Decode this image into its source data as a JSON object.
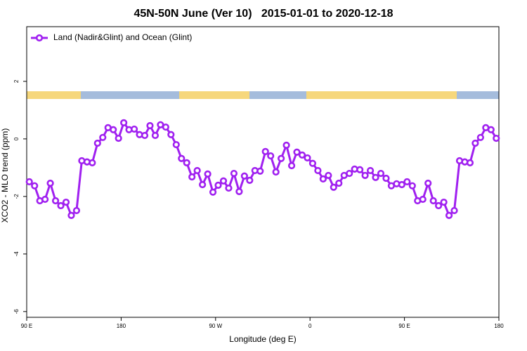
{
  "chart_data": {
    "type": "line",
    "title": "45N-50N June (Ver 10)   2015-01-01 to 2020-12-18",
    "x_label": "Longitude (deg E)",
    "y_label": "XCO2 - MLO trend (ppm)",
    "x": [
      92.5,
      97.5,
      102.5,
      107.5,
      112.5,
      117.5,
      122.5,
      127.5,
      132.5,
      137.5,
      142.5,
      147.5,
      152.5,
      157.5,
      162.5,
      167.5,
      172.5,
      177.5,
      182.5,
      187.5,
      192.5,
      197.5,
      202.5,
      207.5,
      212.5,
      217.5,
      222.5,
      227.5,
      232.5,
      237.5,
      242.5,
      247.5,
      252.5,
      257.5,
      262.5,
      267.5,
      272.5,
      277.5,
      282.5,
      287.5,
      292.5,
      297.5,
      302.5,
      307.5,
      312.5,
      317.5,
      322.5,
      327.5,
      332.5,
      337.5,
      342.5,
      347.5,
      352.5,
      357.5,
      362.5,
      367.5,
      372.5,
      377.5,
      382.5,
      387.5,
      392.5,
      397.5,
      402.5,
      407.5,
      412.5,
      417.5,
      422.5,
      427.5,
      432.5,
      437.5,
      442.5,
      447.5,
      452.5,
      457.5,
      462.5,
      467.5,
      472.5,
      477.5,
      482.5,
      487.5,
      492.5,
      497.5,
      502.5,
      507.5,
      512.5,
      517.5,
      522.5,
      527.5,
      532.5,
      537.5
    ],
    "series": [
      {
        "name": "Land (Nadir&Glint) and Ocean (Glint)",
        "color": "#a020f0",
        "values": [
          -1.49,
          -1.63,
          -2.15,
          -2.1,
          -1.54,
          -2.15,
          -2.32,
          -2.2,
          -2.66,
          -2.49,
          -0.76,
          -0.8,
          -0.83,
          -0.15,
          0.05,
          0.39,
          0.32,
          0.02,
          0.56,
          0.32,
          0.34,
          0.15,
          0.12,
          0.46,
          0.12,
          0.49,
          0.41,
          0.15,
          -0.2,
          -0.68,
          -0.83,
          -1.32,
          -1.1,
          -1.59,
          -1.22,
          -1.85,
          -1.61,
          -1.46,
          -1.71,
          -1.2,
          -1.83,
          -1.29,
          -1.44,
          -1.1,
          -1.12,
          -0.44,
          -0.59,
          -1.15,
          -0.68,
          -0.22,
          -0.93,
          -0.46,
          -0.56,
          -0.66,
          -0.85,
          -1.1,
          -1.39,
          -1.27,
          -1.68,
          -1.54,
          -1.27,
          -1.2,
          -1.05,
          -1.07,
          -1.27,
          -1.1,
          -1.34,
          -1.2,
          -1.37,
          -1.63,
          -1.56,
          -1.59,
          -1.49,
          -1.63,
          -2.15,
          -2.1,
          -1.54,
          -2.15,
          -2.32,
          -2.2,
          -2.66,
          -2.49,
          -0.76,
          -0.8,
          -0.83,
          -0.15,
          0.05,
          0.39,
          0.32,
          0.02
        ]
      }
    ],
    "xlim": [
      90,
      540
    ],
    "xticks": [
      {
        "value": 90,
        "label": "90 E"
      },
      180,
      {
        "value": 270,
        "label": "90 W"
      },
      {
        "value": 360,
        "label": "0"
      },
      {
        "value": 450,
        "label": "90 E"
      },
      {
        "value": 540,
        "label": "180"
      }
    ],
    "ylim": [
      -6.2,
      3.9
    ],
    "yticks": [
      2,
      0,
      -2,
      -4,
      -6
    ],
    "legend_position": "top-left"
  }
}
